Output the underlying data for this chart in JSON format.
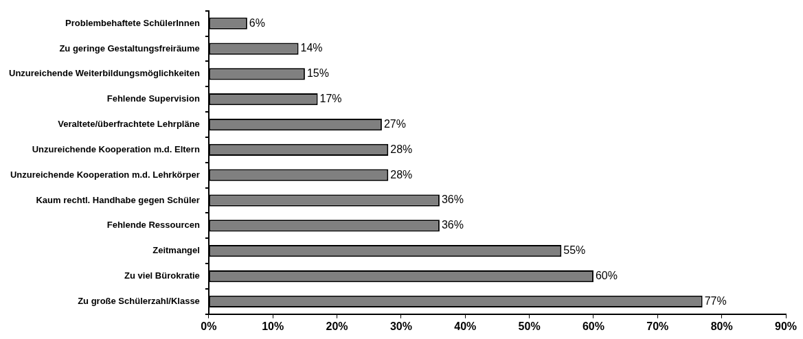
{
  "chart_data": {
    "type": "bar",
    "orientation": "horizontal",
    "categories": [
      "Problembehaftete SchülerInnen",
      "Zu geringe Gestaltungsfreiräume",
      "Unzureichende Weiterbildungsmöglichkeiten",
      "Fehlende Supervision",
      "Veraltete/überfrachtete Lehrpläne",
      "Unzureichende Kooperation m.d. Eltern",
      "Unzureichende Kooperation m.d. Lehrkörper",
      "Kaum rechtl. Handhabe gegen Schüler",
      "Fehlende Ressourcen",
      "Zeitmangel",
      "Zu viel Bürokratie",
      "Zu große Schülerzahl/Klasse"
    ],
    "values": [
      6,
      14,
      15,
      17,
      27,
      28,
      28,
      36,
      36,
      55,
      60,
      77
    ],
    "value_labels": [
      "6%",
      "14%",
      "15%",
      "17%",
      "27%",
      "28%",
      "28%",
      "36%",
      "36%",
      "55%",
      "60%",
      "77%"
    ],
    "color": "#808080",
    "xlim": [
      0,
      90
    ],
    "xticks": [
      {
        "value": 0,
        "label": "0%"
      },
      {
        "value": 10,
        "label": "10%"
      },
      {
        "value": 20,
        "label": "20%"
      },
      {
        "value": 30,
        "label": "30%"
      },
      {
        "value": 40,
        "label": "40%"
      },
      {
        "value": 50,
        "label": "50%"
      },
      {
        "value": 60,
        "label": "60%"
      },
      {
        "value": 70,
        "label": "70%"
      },
      {
        "value": 80,
        "label": "80%"
      },
      {
        "value": 90,
        "label": "90%"
      }
    ],
    "grid": false,
    "legend": false
  }
}
